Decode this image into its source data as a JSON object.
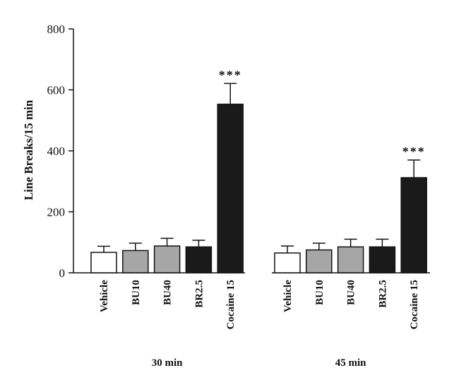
{
  "chart_data": {
    "type": "bar",
    "ylabel": "Line Breaks/15 min",
    "ylim": [
      0,
      800
    ],
    "yticks": [
      0,
      200,
      400,
      600,
      800
    ],
    "groups": [
      {
        "label": "30 min",
        "bars": [
          {
            "category": "Vehicle",
            "value": 67,
            "error": 20,
            "color": "#ffffff",
            "annotation": ""
          },
          {
            "category": "BU10",
            "value": 73,
            "error": 24,
            "color": "#a6a6a6",
            "annotation": ""
          },
          {
            "category": "BU40",
            "value": 88,
            "error": 25,
            "color": "#a6a6a6",
            "annotation": ""
          },
          {
            "category": "BR2.5",
            "value": 85,
            "error": 22,
            "color": "#1a1a1a",
            "annotation": ""
          },
          {
            "category": "Cocaine 15",
            "value": 553,
            "error": 68,
            "color": "#1a1a1a",
            "annotation": "***"
          }
        ]
      },
      {
        "label": "45 min",
        "bars": [
          {
            "category": "Vehicle",
            "value": 65,
            "error": 23,
            "color": "#ffffff",
            "annotation": ""
          },
          {
            "category": "BU10",
            "value": 75,
            "error": 22,
            "color": "#a6a6a6",
            "annotation": ""
          },
          {
            "category": "BU40",
            "value": 85,
            "error": 25,
            "color": "#a6a6a6",
            "annotation": ""
          },
          {
            "category": "BR2.5",
            "value": 85,
            "error": 25,
            "color": "#1a1a1a",
            "annotation": ""
          },
          {
            "category": "Cocaine 15",
            "value": 312,
            "error": 58,
            "color": "#1a1a1a",
            "annotation": "***"
          }
        ]
      }
    ]
  }
}
